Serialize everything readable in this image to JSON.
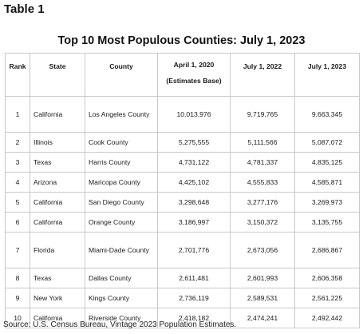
{
  "table_label": "Table 1",
  "title": "Top 10 Most Populous Counties: July 1, 2023",
  "columns": {
    "rank": "Rank",
    "state": "State",
    "county": "County",
    "apr2020_line1": "April 1, 2020",
    "apr2020_line2": "(Estimates Base)",
    "jul2022": "July 1, 2022",
    "jul2023": "July 1, 2023"
  },
  "rows": [
    {
      "rank": "1",
      "state": "California",
      "county": "Los Angeles County",
      "apr2020": "10,013,976",
      "jul2022": "9,719,765",
      "jul2023": "9,663,345"
    },
    {
      "rank": "2",
      "state": "Illinois",
      "county": "Cook County",
      "apr2020": "5,275,555",
      "jul2022": "5,111,566",
      "jul2023": "5,087,072"
    },
    {
      "rank": "3",
      "state": "Texas",
      "county": "Harris County",
      "apr2020": "4,731,122",
      "jul2022": "4,781,337",
      "jul2023": "4,835,125"
    },
    {
      "rank": "4",
      "state": "Arizona",
      "county": "Maricopa County",
      "apr2020": "4,425,102",
      "jul2022": "4,555,833",
      "jul2023": "4,585,871"
    },
    {
      "rank": "5",
      "state": "California",
      "county": "San Diego County",
      "apr2020": "3,298,648",
      "jul2022": "3,277,176",
      "jul2023": "3,269,973"
    },
    {
      "rank": "6",
      "state": "California",
      "county": "Orange County",
      "apr2020": "3,186,997",
      "jul2022": "3,150,372",
      "jul2023": "3,135,755"
    },
    {
      "rank": "7",
      "state": "Florida",
      "county": "Miami-Dade County",
      "apr2020": "2,701,776",
      "jul2022": "2,673,056",
      "jul2023": "2,686,867"
    },
    {
      "rank": "8",
      "state": "Texas",
      "county": "Dallas County",
      "apr2020": "2,611,481",
      "jul2022": "2,601,993",
      "jul2023": "2,606,358"
    },
    {
      "rank": "9",
      "state": "New York",
      "county": "Kings County",
      "apr2020": "2,736,119",
      "jul2022": "2,589,531",
      "jul2023": "2,561,225"
    },
    {
      "rank": "10",
      "state": "California",
      "county": "Riverside County",
      "apr2020": "2,418,182",
      "jul2022": "2,474,241",
      "jul2023": "2,492,442"
    }
  ],
  "source": "Source: U.S. Census Bureau, Vintage 2023 Population Estimates."
}
